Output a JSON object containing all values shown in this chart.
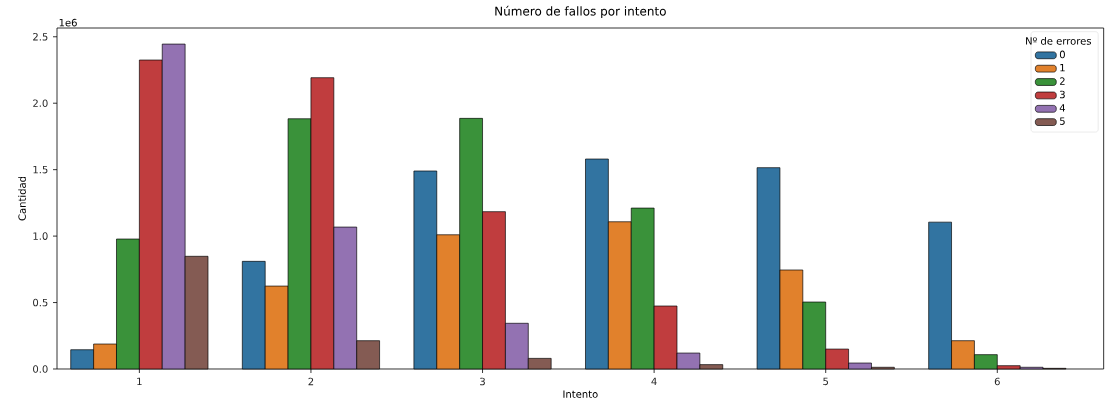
{
  "chart_data": {
    "type": "bar",
    "title": "Número de fallos por intento",
    "xlabel": "Intento",
    "ylabel": "Cantidad",
    "legend_title": "Nº de errores",
    "annotations": [
      "1e6"
    ],
    "categories": [
      "1",
      "2",
      "3",
      "4",
      "5",
      "6"
    ],
    "series": [
      {
        "name": "0",
        "color": "#3274a1",
        "values": [
          0.145,
          0.81,
          1.49,
          1.58,
          1.515,
          1.105
        ]
      },
      {
        "name": "1",
        "color": "#e1812c",
        "values": [
          0.188,
          0.624,
          1.01,
          1.108,
          0.745,
          0.213
        ]
      },
      {
        "name": "2",
        "color": "#3a923a",
        "values": [
          0.978,
          1.883,
          1.886,
          1.211,
          0.504,
          0.108
        ]
      },
      {
        "name": "3",
        "color": "#c03d3e",
        "values": [
          2.325,
          2.192,
          1.184,
          0.474,
          0.15,
          0.025
        ]
      },
      {
        "name": "4",
        "color": "#9372b2",
        "values": [
          2.445,
          1.068,
          0.344,
          0.12,
          0.045,
          0.013
        ]
      },
      {
        "name": "5",
        "color": "#845b53",
        "values": [
          0.848,
          0.213,
          0.08,
          0.033,
          0.013,
          0.005
        ]
      }
    ],
    "ylim": [
      0,
      2.566
    ],
    "yticks": [
      {
        "value": 0,
        "label": "0.0"
      },
      0.5,
      {
        "value": 1,
        "label": "1.0"
      },
      1.5,
      {
        "value": 2,
        "label": "2.0"
      },
      2.5
    ],
    "legend": "top right"
  }
}
